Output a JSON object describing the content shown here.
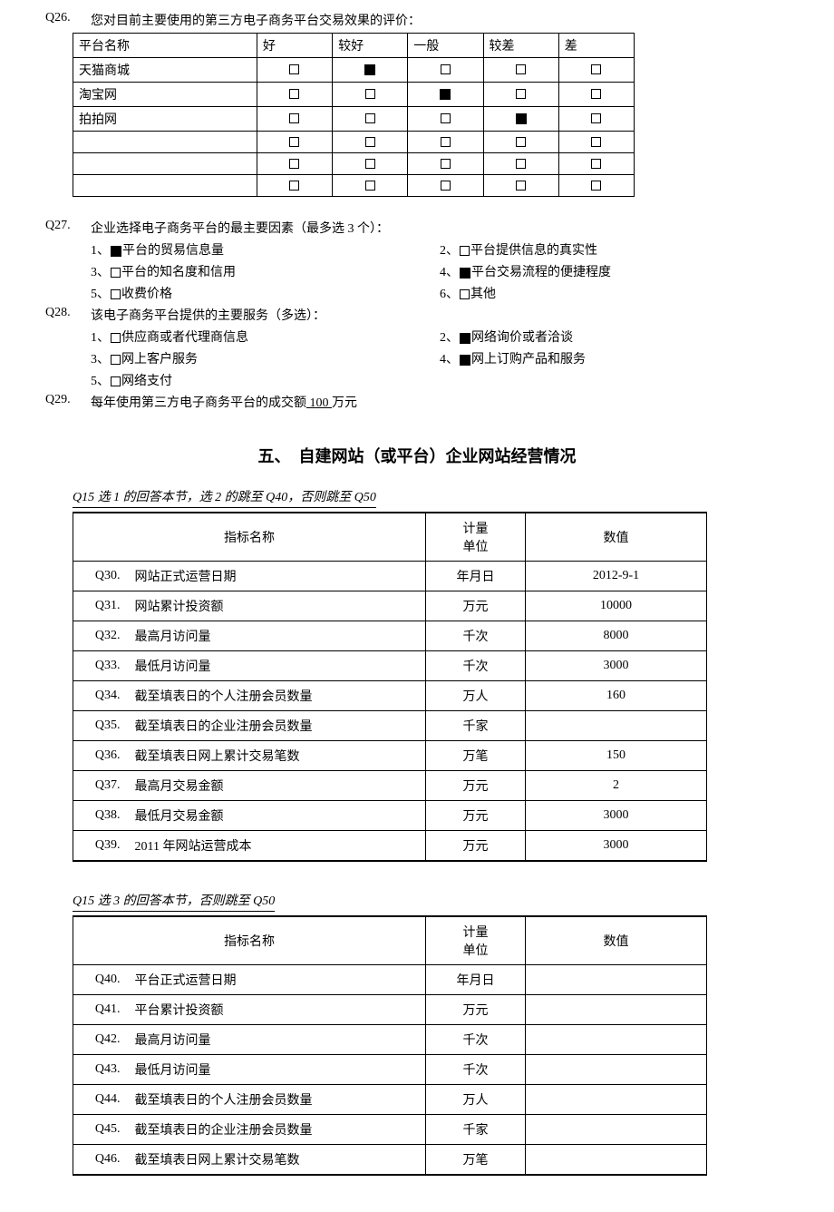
{
  "q26": {
    "label": "Q26.",
    "text": "您对目前主要使用的第三方电子商务平台交易效果的评价：",
    "headers": [
      "平台名称",
      "好",
      "较好",
      "一般",
      "较差",
      "差"
    ],
    "rows": [
      {
        "name": "天猫商城",
        "sel": [
          0,
          1,
          0,
          0,
          0
        ]
      },
      {
        "name": "淘宝网",
        "sel": [
          0,
          0,
          1,
          0,
          0
        ]
      },
      {
        "name": "拍拍网",
        "sel": [
          0,
          0,
          0,
          1,
          0
        ]
      },
      {
        "name": "",
        "sel": [
          0,
          0,
          0,
          0,
          0
        ]
      },
      {
        "name": "",
        "sel": [
          0,
          0,
          0,
          0,
          0
        ]
      },
      {
        "name": "",
        "sel": [
          0,
          0,
          0,
          0,
          0
        ]
      }
    ]
  },
  "q27": {
    "label": "Q27.",
    "text": "企业选择电子商务平台的最主要因素（最多选 3 个）：",
    "options": [
      {
        "n": "1、",
        "sel": 1,
        "t": "平台的贸易信息量"
      },
      {
        "n": "2、",
        "sel": 0,
        "t": "平台提供信息的真实性"
      },
      {
        "n": "3、",
        "sel": 0,
        "t": "平台的知名度和信用"
      },
      {
        "n": "4、",
        "sel": 1,
        "t": "平台交易流程的便捷程度"
      },
      {
        "n": "5、",
        "sel": 0,
        "t": "收费价格"
      },
      {
        "n": "6、",
        "sel": 0,
        "t": "其他"
      }
    ]
  },
  "q28": {
    "label": "Q28.",
    "text": "该电子商务平台提供的主要服务（多选）：",
    "options": [
      {
        "n": "1、",
        "sel": 0,
        "t": "供应商或者代理商信息"
      },
      {
        "n": "2、",
        "sel": 1,
        "t": "网络询价或者洽谈"
      },
      {
        "n": "3、",
        "sel": 0,
        "t": "网上客户服务"
      },
      {
        "n": "4、",
        "sel": 1,
        "t": "网上订购产品和服务"
      },
      {
        "n": "5、",
        "sel": 0,
        "t": "网络支付"
      }
    ]
  },
  "q29": {
    "label": "Q29.",
    "pre": "每年使用第三方电子商务平台的成交额",
    "val": " 100 ",
    "post": "万元"
  },
  "section5": {
    "num": "五、",
    "title": "自建网站（或平台）企业网站经营情况"
  },
  "note1": "Q15 选 1 的回答本节，选 2 的跳至 Q40，否则跳至 Q50",
  "note2": "Q15 选 3 的回答本节，否则跳至 Q50",
  "metrics_headers": {
    "name": "指标名称",
    "unit_l1": "计量",
    "unit_l2": "单位",
    "val": "数值"
  },
  "metrics1": [
    {
      "q": "Q30.",
      "name": "网站正式运营日期",
      "unit": "年月日",
      "val": "2012-9-1"
    },
    {
      "q": "Q31.",
      "name": "网站累计投资额",
      "unit": "万元",
      "val": "10000"
    },
    {
      "q": "Q32.",
      "name": "最高月访问量",
      "unit": "千次",
      "val": "8000"
    },
    {
      "q": "Q33.",
      "name": "最低月访问量",
      "unit": "千次",
      "val": "3000"
    },
    {
      "q": "Q34.",
      "name": "截至填表日的个人注册会员数量",
      "unit": "万人",
      "val": "160"
    },
    {
      "q": "Q35.",
      "name": "截至填表日的企业注册会员数量",
      "unit": "千家",
      "val": ""
    },
    {
      "q": "Q36.",
      "name": "截至填表日网上累计交易笔数",
      "unit": "万笔",
      "val": "150"
    },
    {
      "q": "Q37.",
      "name": "最高月交易金额",
      "unit": "万元",
      "val": "2"
    },
    {
      "q": "Q38.",
      "name": "最低月交易金额",
      "unit": "万元",
      "val": "3000"
    },
    {
      "q": "Q39.",
      "name": "2011 年网站运营成本",
      "unit": "万元",
      "val": "3000"
    }
  ],
  "metrics2": [
    {
      "q": "Q40.",
      "name": "平台正式运营日期",
      "unit": "年月日",
      "val": ""
    },
    {
      "q": "Q41.",
      "name": "平台累计投资额",
      "unit": "万元",
      "val": ""
    },
    {
      "q": "Q42.",
      "name": "最高月访问量",
      "unit": "千次",
      "val": ""
    },
    {
      "q": "Q43.",
      "name": "最低月访问量",
      "unit": "千次",
      "val": ""
    },
    {
      "q": "Q44.",
      "name": "截至填表日的个人注册会员数量",
      "unit": "万人",
      "val": ""
    },
    {
      "q": "Q45.",
      "name": "截至填表日的企业注册会员数量",
      "unit": "千家",
      "val": ""
    },
    {
      "q": "Q46.",
      "name": "截至填表日网上累计交易笔数",
      "unit": "万笔",
      "val": ""
    }
  ]
}
